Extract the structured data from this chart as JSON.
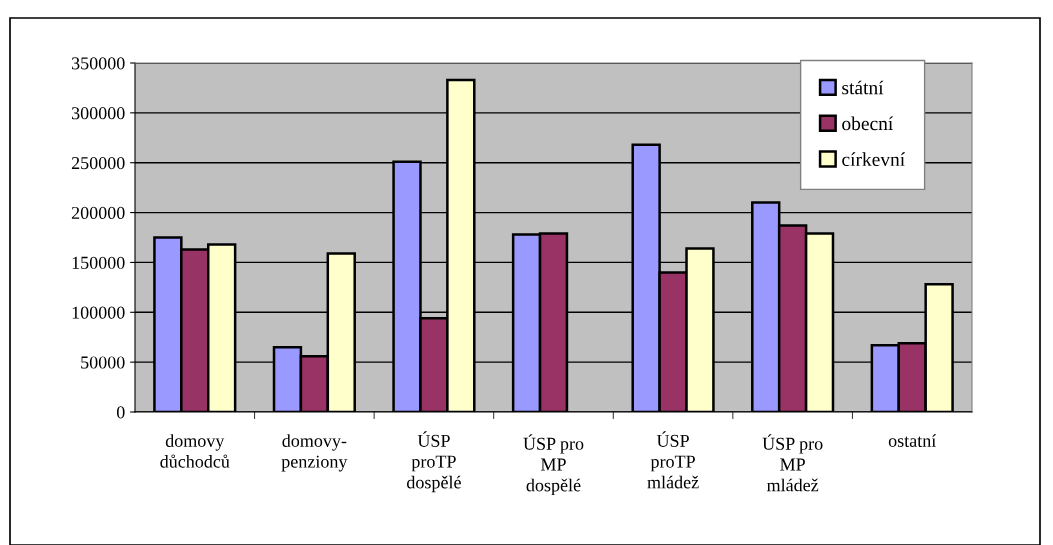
{
  "chart_data": {
    "type": "bar",
    "categories": [
      "domovy\ndůchodců",
      "domovy-\npenziony",
      "ÚSP\nproTP\ndospělé",
      "ÚSP pro\nMP\ndospělé",
      "ÚSP\nproTP\nmládež",
      "ÚSP pro\nMP\nmládež",
      "ostatní"
    ],
    "series": [
      {
        "name": "státní",
        "color": "#9999ff",
        "values": [
          175000,
          65000,
          251000,
          178000,
          268000,
          210000,
          67000
        ]
      },
      {
        "name": "obecní",
        "color": "#993366",
        "values": [
          163000,
          56000,
          94000,
          179000,
          140000,
          187000,
          69000
        ]
      },
      {
        "name": "církevní",
        "color": "#ffffcc",
        "values": [
          168000,
          159000,
          333000,
          null,
          164000,
          179000,
          128000
        ]
      }
    ],
    "ylim": [
      0,
      350000
    ],
    "yticks": [
      0,
      50000,
      100000,
      150000,
      200000,
      250000,
      300000,
      350000
    ],
    "grid": "y",
    "legend": "top right"
  }
}
